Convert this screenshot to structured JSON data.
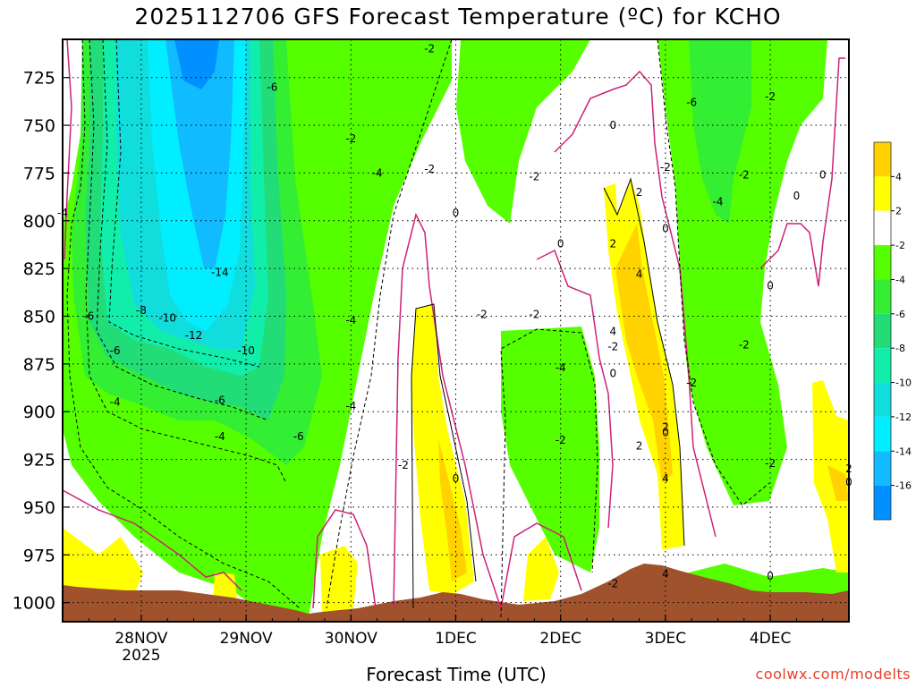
{
  "title": "2025112706 GFS Forecast Temperature (ºC) for KCHO",
  "xlabel": "Forecast Time (UTC)",
  "credit": "coolwx.com/modelts",
  "colors": {
    "above_4": "#ffd200",
    "2_to_4": "#ffff00",
    "-2_to_2": "#ffffff",
    "-4_to_-2": "#55ff00",
    "-6_to_-4": "#33ee33",
    "-8_to_-6": "#22dd77",
    "-10_to_-8": "#11eeaa",
    "-12_to_-10": "#11dddd",
    "-14_to_-12": "#00eeff",
    "-16_to_-14": "#11bbff",
    "below_-16": "#0090ff",
    "freezing_line": "#cc2277",
    "ground": "#a0522d"
  },
  "chart_data": {
    "type": "heatmap",
    "title": "2025112706 GFS Forecast Temperature (ºC) for KCHO",
    "xlabel": "Forecast Time (UTC)",
    "ylabel": "",
    "x_ticks": [
      "28NOV\n2025",
      "29NOV",
      "30NOV",
      "1DEC",
      "2DEC",
      "3DEC",
      "4DEC"
    ],
    "y_ticks": [
      725,
      750,
      775,
      800,
      825,
      850,
      875,
      900,
      925,
      950,
      975,
      1000
    ],
    "xlim": [
      "2025-11-27T06",
      "2025-12-04T18"
    ],
    "ylim": [
      1010,
      705
    ],
    "y_axis": "pressure (hPa), inverted",
    "colorbar": {
      "ticks": [
        "4",
        "2",
        "-2",
        "-4",
        "-6",
        "-8",
        "-10",
        "-12",
        "-14",
        "-16"
      ],
      "colors": [
        "#ffd200",
        "#ffff00",
        "#ffffff",
        "#55ff00",
        "#33ee33",
        "#22dd77",
        "#11eeaa",
        "#11dddd",
        "#00eeff",
        "#11bbff",
        "#0090ff"
      ]
    },
    "contour_labels": [
      {
        "text": "-2",
        "day": "2025-11-30T18",
        "p": 710
      },
      {
        "text": "-6",
        "day": "2025-11-29T06",
        "p": 730
      },
      {
        "text": "-2",
        "day": "2025-11-30T00",
        "p": 757
      },
      {
        "text": "0",
        "day": "2025-12-02T12",
        "p": 750
      },
      {
        "text": "-6",
        "day": "2025-12-03T06",
        "p": 738
      },
      {
        "text": "-2",
        "day": "2025-12-04T00",
        "p": 735
      },
      {
        "text": "-4",
        "day": "2025-11-30T06",
        "p": 775
      },
      {
        "text": "-2",
        "day": "2025-11-30T18",
        "p": 773
      },
      {
        "text": "-2",
        "day": "2025-12-01T18",
        "p": 777
      },
      {
        "text": "-2",
        "day": "2025-12-03T00",
        "p": 772
      },
      {
        "text": "-2",
        "day": "2025-12-03T18",
        "p": 776
      },
      {
        "text": "0",
        "day": "2025-12-04T12",
        "p": 776
      },
      {
        "text": "0",
        "day": "2025-12-04T06",
        "p": 787
      },
      {
        "text": "-4",
        "day": "2025-12-03T12",
        "p": 790
      },
      {
        "text": "0",
        "day": "2025-12-01T00",
        "p": 796
      },
      {
        "text": "2",
        "day": "2025-12-02T18",
        "p": 785
      },
      {
        "text": "-4",
        "day": "2025-11-27T06",
        "p": 796
      },
      {
        "text": "0",
        "day": "2025-12-02T00",
        "p": 812
      },
      {
        "text": "0",
        "day": "2025-12-03T00",
        "p": 804
      },
      {
        "text": "2",
        "day": "2025-12-02T12",
        "p": 812
      },
      {
        "text": "-14",
        "day": "2025-11-28T18",
        "p": 827
      },
      {
        "text": "4",
        "day": "2025-12-02T18",
        "p": 828
      },
      {
        "text": "0",
        "day": "2025-12-04T00",
        "p": 834
      },
      {
        "text": "-6",
        "day": "2025-11-27T12",
        "p": 850
      },
      {
        "text": "-8",
        "day": "2025-11-28T00",
        "p": 847
      },
      {
        "text": "-10",
        "day": "2025-11-28T06",
        "p": 851
      },
      {
        "text": "-4",
        "day": "2025-11-30T00",
        "p": 852
      },
      {
        "text": "-2",
        "day": "2025-12-01T06",
        "p": 849
      },
      {
        "text": "-2",
        "day": "2025-12-01T18",
        "p": 849
      },
      {
        "text": "-12",
        "day": "2025-11-28T12",
        "p": 860
      },
      {
        "text": "4",
        "day": "2025-12-02T12",
        "p": 858
      },
      {
        "text": "-6",
        "day": "2025-11-27T18",
        "p": 868
      },
      {
        "text": "-10",
        "day": "2025-11-29T00",
        "p": 868
      },
      {
        "text": "-4",
        "day": "2025-12-02T00",
        "p": 877
      },
      {
        "text": "-2",
        "day": "2025-12-02T12",
        "p": 866
      },
      {
        "text": "0",
        "day": "2025-12-02T12",
        "p": 880
      },
      {
        "text": "-2",
        "day": "2025-12-03T18",
        "p": 865
      },
      {
        "text": "-2",
        "day": "2025-12-03T06",
        "p": 885
      },
      {
        "text": "-6",
        "day": "2025-11-28T18",
        "p": 894
      },
      {
        "text": "-4",
        "day": "2025-11-27T18",
        "p": 895
      },
      {
        "text": "-4",
        "day": "2025-11-30T00",
        "p": 897
      },
      {
        "text": "-4",
        "day": "2025-11-28T18",
        "p": 913
      },
      {
        "text": "-6",
        "day": "2025-11-29T12",
        "p": 913
      },
      {
        "text": "2",
        "day": "2025-12-03T00",
        "p": 908
      },
      {
        "text": "0",
        "day": "2025-12-03T00",
        "p": 911
      },
      {
        "text": "-2",
        "day": "2025-12-02T00",
        "p": 915
      },
      {
        "text": "2",
        "day": "2025-12-02T18",
        "p": 918
      },
      {
        "text": "-2",
        "day": "2025-11-30T12",
        "p": 928
      },
      {
        "text": "0",
        "day": "2025-12-01T00",
        "p": 935
      },
      {
        "text": "4",
        "day": "2025-12-03T00",
        "p": 935
      },
      {
        "text": "-2",
        "day": "2025-12-04T00",
        "p": 927
      },
      {
        "text": "0",
        "day": "2025-12-04T18",
        "p": 937
      },
      {
        "text": "2",
        "day": "2025-12-04T18",
        "p": 930
      },
      {
        "text": "4",
        "day": "2025-12-03T00",
        "p": 985
      },
      {
        "text": "-2",
        "day": "2025-12-02T12",
        "p": 990
      },
      {
        "text": "0",
        "day": "2025-12-04T00",
        "p": 986
      }
    ]
  }
}
